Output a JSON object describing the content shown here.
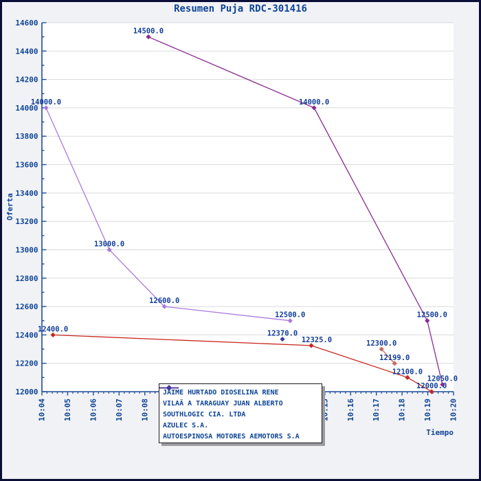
{
  "title": "Resumen Puja RDC-301416",
  "style_colors": {
    "page_bg": "#f1f2f6",
    "frame_border": "#0b0f38",
    "plot_bg": "#ffffff",
    "grid": "#d9dade",
    "axis": "#1d4b9b",
    "text_navy": "#0d4496",
    "legend_border": "#1a1a1a",
    "legend_shadow": "#9b9ba1"
  },
  "chart_data": {
    "type": "line",
    "title": "Resumen Puja RDC-301416",
    "xlabel": "Tiempo",
    "ylabel": "Oferta",
    "x_ticks": [
      "10:04",
      "10:05",
      "10:06",
      "10:07",
      "10:08",
      "10:09",
      "10:10",
      "10:11",
      "10:12",
      "10:13",
      "10:14",
      "10:15",
      "10:16",
      "10:17",
      "10:18",
      "10:19",
      "10:20"
    ],
    "x_minor_per_major": 5,
    "ylim": [
      12000,
      14600
    ],
    "y_major_step": 200,
    "y_minor_step": 100,
    "grid": "horizontal-only",
    "legend_position": "bottom-center",
    "series": [
      {
        "name": "JAIME HURTADO DIOSELINA RENE",
        "color": "#a97ade",
        "points": [
          {
            "x_min": 0.16,
            "y": 14000,
            "label": "14000.0"
          },
          {
            "x_min": 2.62,
            "y": 13000,
            "label": "13000.0"
          },
          {
            "x_min": 4.76,
            "y": 12600,
            "label": "12600.0"
          },
          {
            "x_min": 9.65,
            "y": 12500,
            "label": "12500.0"
          }
        ]
      },
      {
        "name": "VILAÃ A TARAGUAY JUAN ALBERTO",
        "color": "#c7271e",
        "points": [
          {
            "x_min": 0.43,
            "y": 12400,
            "label": "12400.0"
          },
          {
            "x_min": 10.47,
            "y": 12325,
            "label": "12325.0",
            "label_dx": 8
          },
          {
            "x_min": 14.21,
            "y": 12100,
            "label": "12100.0"
          },
          {
            "x_min": 15.15,
            "y": 12000,
            "label": "12000.0"
          }
        ]
      },
      {
        "name": "SOUTHLOGIC CIA. LTDA",
        "color": "#c96a63",
        "points": [
          {
            "x_min": 13.2,
            "y": 12300,
            "label": "12300.0"
          },
          {
            "x_min": 13.71,
            "y": 12199,
            "label": "12199.0"
          }
        ]
      },
      {
        "name": "AZULEC S.A.",
        "color": "#8a2b8e",
        "points": [
          {
            "x_min": 4.14,
            "y": 14500,
            "label": "14500.0"
          },
          {
            "x_min": 10.58,
            "y": 14000,
            "label": "14000.0"
          },
          {
            "x_min": 14.98,
            "y": 12500,
            "label": "12500.0",
            "label_dx": 7
          },
          {
            "x_min": 15.57,
            "y": 12050,
            "label": "12050.0"
          }
        ]
      },
      {
        "name": "AUTOESPINOSA MOTORES AEMOTORS S.A",
        "color": "#3c3ca2",
        "points": [
          {
            "x_min": 9.35,
            "y": 12370,
            "label": "12370.0"
          }
        ]
      }
    ]
  }
}
